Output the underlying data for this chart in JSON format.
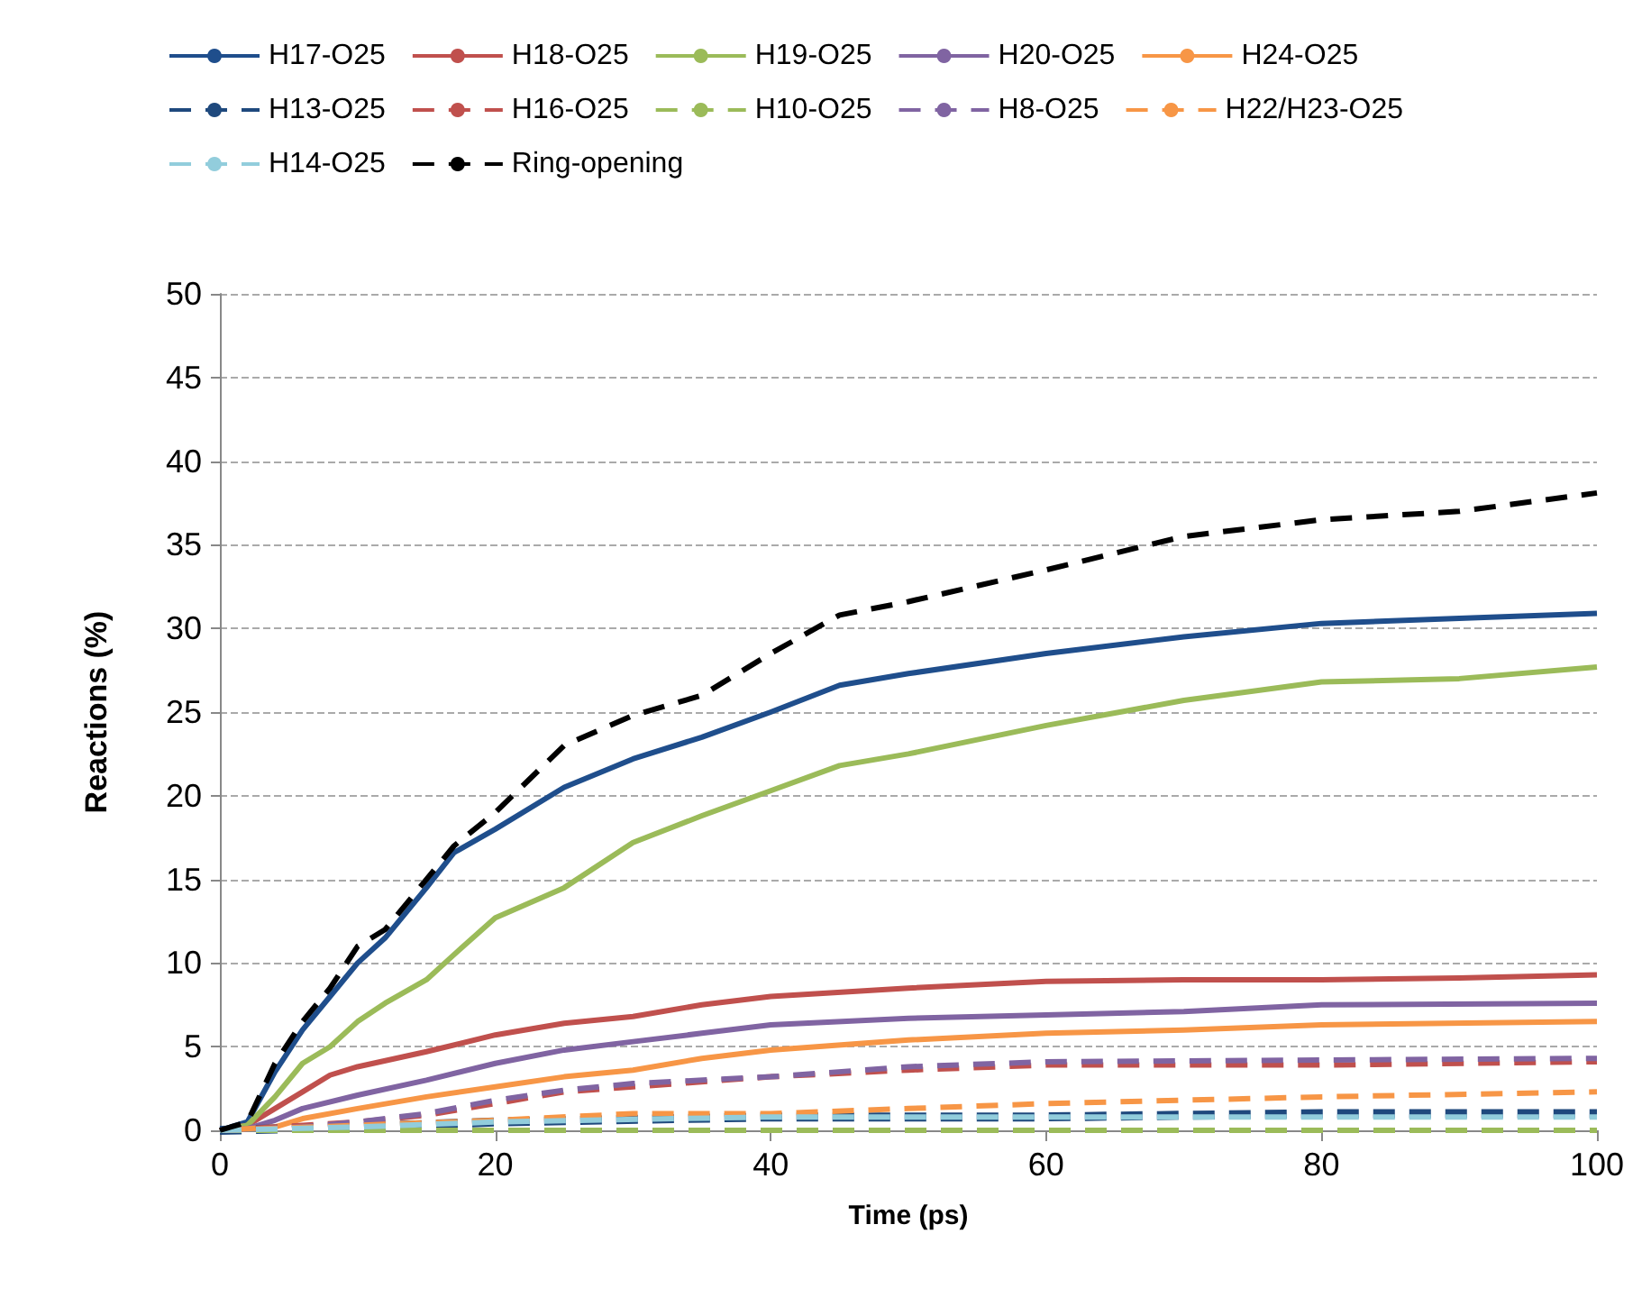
{
  "chart_data": {
    "type": "line",
    "xlabel": "Time (ps)",
    "ylabel": "Reactions (%)",
    "xlim": [
      0,
      100
    ],
    "xticks": [
      0,
      20,
      40,
      60,
      80,
      100
    ],
    "ylim": [
      0,
      50
    ],
    "yticks": [
      0,
      5,
      10,
      15,
      20,
      25,
      30,
      35,
      40,
      45,
      50
    ],
    "grid": "y",
    "legend": "top",
    "marker": "none",
    "series": [
      {
        "name": "H17-O25",
        "color": "#1f4e8c",
        "line_style": "solid",
        "x": [
          0,
          2,
          4,
          6,
          8,
          10,
          12,
          15,
          17,
          20,
          25,
          30,
          35,
          40,
          45,
          50,
          60,
          70,
          80,
          90,
          100
        ],
        "values": [
          0,
          0.5,
          3.5,
          6,
          8,
          10,
          11.5,
          14.5,
          16.6,
          18,
          20.5,
          22.2,
          23.5,
          25,
          26.6,
          27.3,
          28.5,
          29.5,
          30.3,
          30.6,
          30.9
        ]
      },
      {
        "name": "H18-O25",
        "color": "#c0504d",
        "line_style": "solid",
        "x": [
          0,
          2,
          4,
          6,
          8,
          10,
          15,
          20,
          25,
          30,
          35,
          40,
          50,
          60,
          70,
          80,
          90,
          100
        ],
        "values": [
          0,
          0.3,
          1.3,
          2.3,
          3.3,
          3.8,
          4.7,
          5.7,
          6.4,
          6.8,
          7.5,
          8,
          8.5,
          8.9,
          9,
          9,
          9.1,
          9.3
        ]
      },
      {
        "name": "H19-O25",
        "color": "#9bbb59",
        "line_style": "solid",
        "x": [
          0,
          2,
          4,
          6,
          8,
          10,
          12,
          15,
          17,
          20,
          25,
          30,
          35,
          40,
          45,
          50,
          60,
          70,
          80,
          90,
          100
        ],
        "values": [
          0,
          0.3,
          2,
          4,
          5,
          6.5,
          7.6,
          9,
          10.5,
          12.7,
          14.5,
          17.2,
          18.8,
          20.3,
          21.8,
          22.5,
          24.2,
          25.7,
          26.8,
          27,
          27.7
        ]
      },
      {
        "name": "H20-O25",
        "color": "#8064a2",
        "line_style": "solid",
        "x": [
          0,
          2,
          4,
          6,
          10,
          15,
          20,
          25,
          30,
          35,
          40,
          50,
          60,
          70,
          80,
          100
        ],
        "values": [
          0,
          0.1,
          0.6,
          1.3,
          2.1,
          3,
          4,
          4.8,
          5.3,
          5.8,
          6.3,
          6.7,
          6.9,
          7.1,
          7.5,
          7.6
        ]
      },
      {
        "name": "H24-O25",
        "color": "#f79646",
        "line_style": "solid",
        "x": [
          0,
          4,
          6,
          10,
          15,
          20,
          25,
          30,
          35,
          40,
          50,
          60,
          70,
          80,
          100
        ],
        "values": [
          0,
          0.2,
          0.7,
          1.3,
          2,
          2.6,
          3.2,
          3.6,
          4.3,
          4.8,
          5.4,
          5.8,
          6,
          6.3,
          6.5
        ]
      },
      {
        "name": "H13-O25",
        "color": "#1f497d",
        "line_style": "dashed",
        "x": [
          0,
          10,
          20,
          40,
          60,
          80,
          100
        ],
        "values": [
          0,
          0.2,
          0.5,
          0.8,
          0.8,
          1,
          1
        ]
      },
      {
        "name": "H16-O25",
        "color": "#c0504d",
        "line_style": "dashed",
        "x": [
          0,
          10,
          15,
          20,
          25,
          30,
          40,
          50,
          60,
          80,
          100
        ],
        "values": [
          0,
          0.5,
          0.9,
          1.6,
          2.3,
          2.6,
          3.2,
          3.6,
          3.9,
          3.9,
          4.1
        ]
      },
      {
        "name": "H10-O25",
        "color": "#9bbb59",
        "line_style": "dashed",
        "x": [
          0,
          50,
          100
        ],
        "values": [
          0,
          0,
          0
        ]
      },
      {
        "name": "H8-O25",
        "color": "#8064a2",
        "line_style": "dashed",
        "x": [
          0,
          6,
          10,
          15,
          20,
          25,
          30,
          40,
          50,
          60,
          80,
          100
        ],
        "values": [
          0,
          0.2,
          0.5,
          1,
          1.8,
          2.4,
          2.8,
          3.2,
          3.8,
          4.1,
          4.2,
          4.3
        ]
      },
      {
        "name": "H22/H23-O25",
        "color": "#f79646",
        "line_style": "dashed",
        "x": [
          0,
          10,
          20,
          30,
          40,
          50,
          60,
          80,
          100
        ],
        "values": [
          0,
          0.3,
          0.6,
          1,
          1,
          1.3,
          1.6,
          2,
          2.3
        ]
      },
      {
        "name": "H14-O25",
        "color": "#92cddc",
        "line_style": "dashed",
        "x": [
          0,
          10,
          20,
          40,
          60,
          100
        ],
        "values": [
          0,
          0.2,
          0.5,
          0.8,
          0.8,
          0.8
        ]
      },
      {
        "name": "Ring-opening",
        "color": "#000000",
        "line_style": "dashed",
        "x": [
          0,
          2,
          4,
          6,
          8,
          10,
          12,
          15,
          17,
          20,
          25,
          30,
          35,
          40,
          45,
          50,
          60,
          70,
          80,
          90,
          100
        ],
        "values": [
          0,
          0.5,
          4,
          6.5,
          8.5,
          11,
          12,
          15,
          17,
          19,
          23,
          24.8,
          26,
          28.5,
          30.8,
          31.6,
          33.5,
          35.5,
          36.5,
          37,
          38.1
        ]
      }
    ]
  }
}
